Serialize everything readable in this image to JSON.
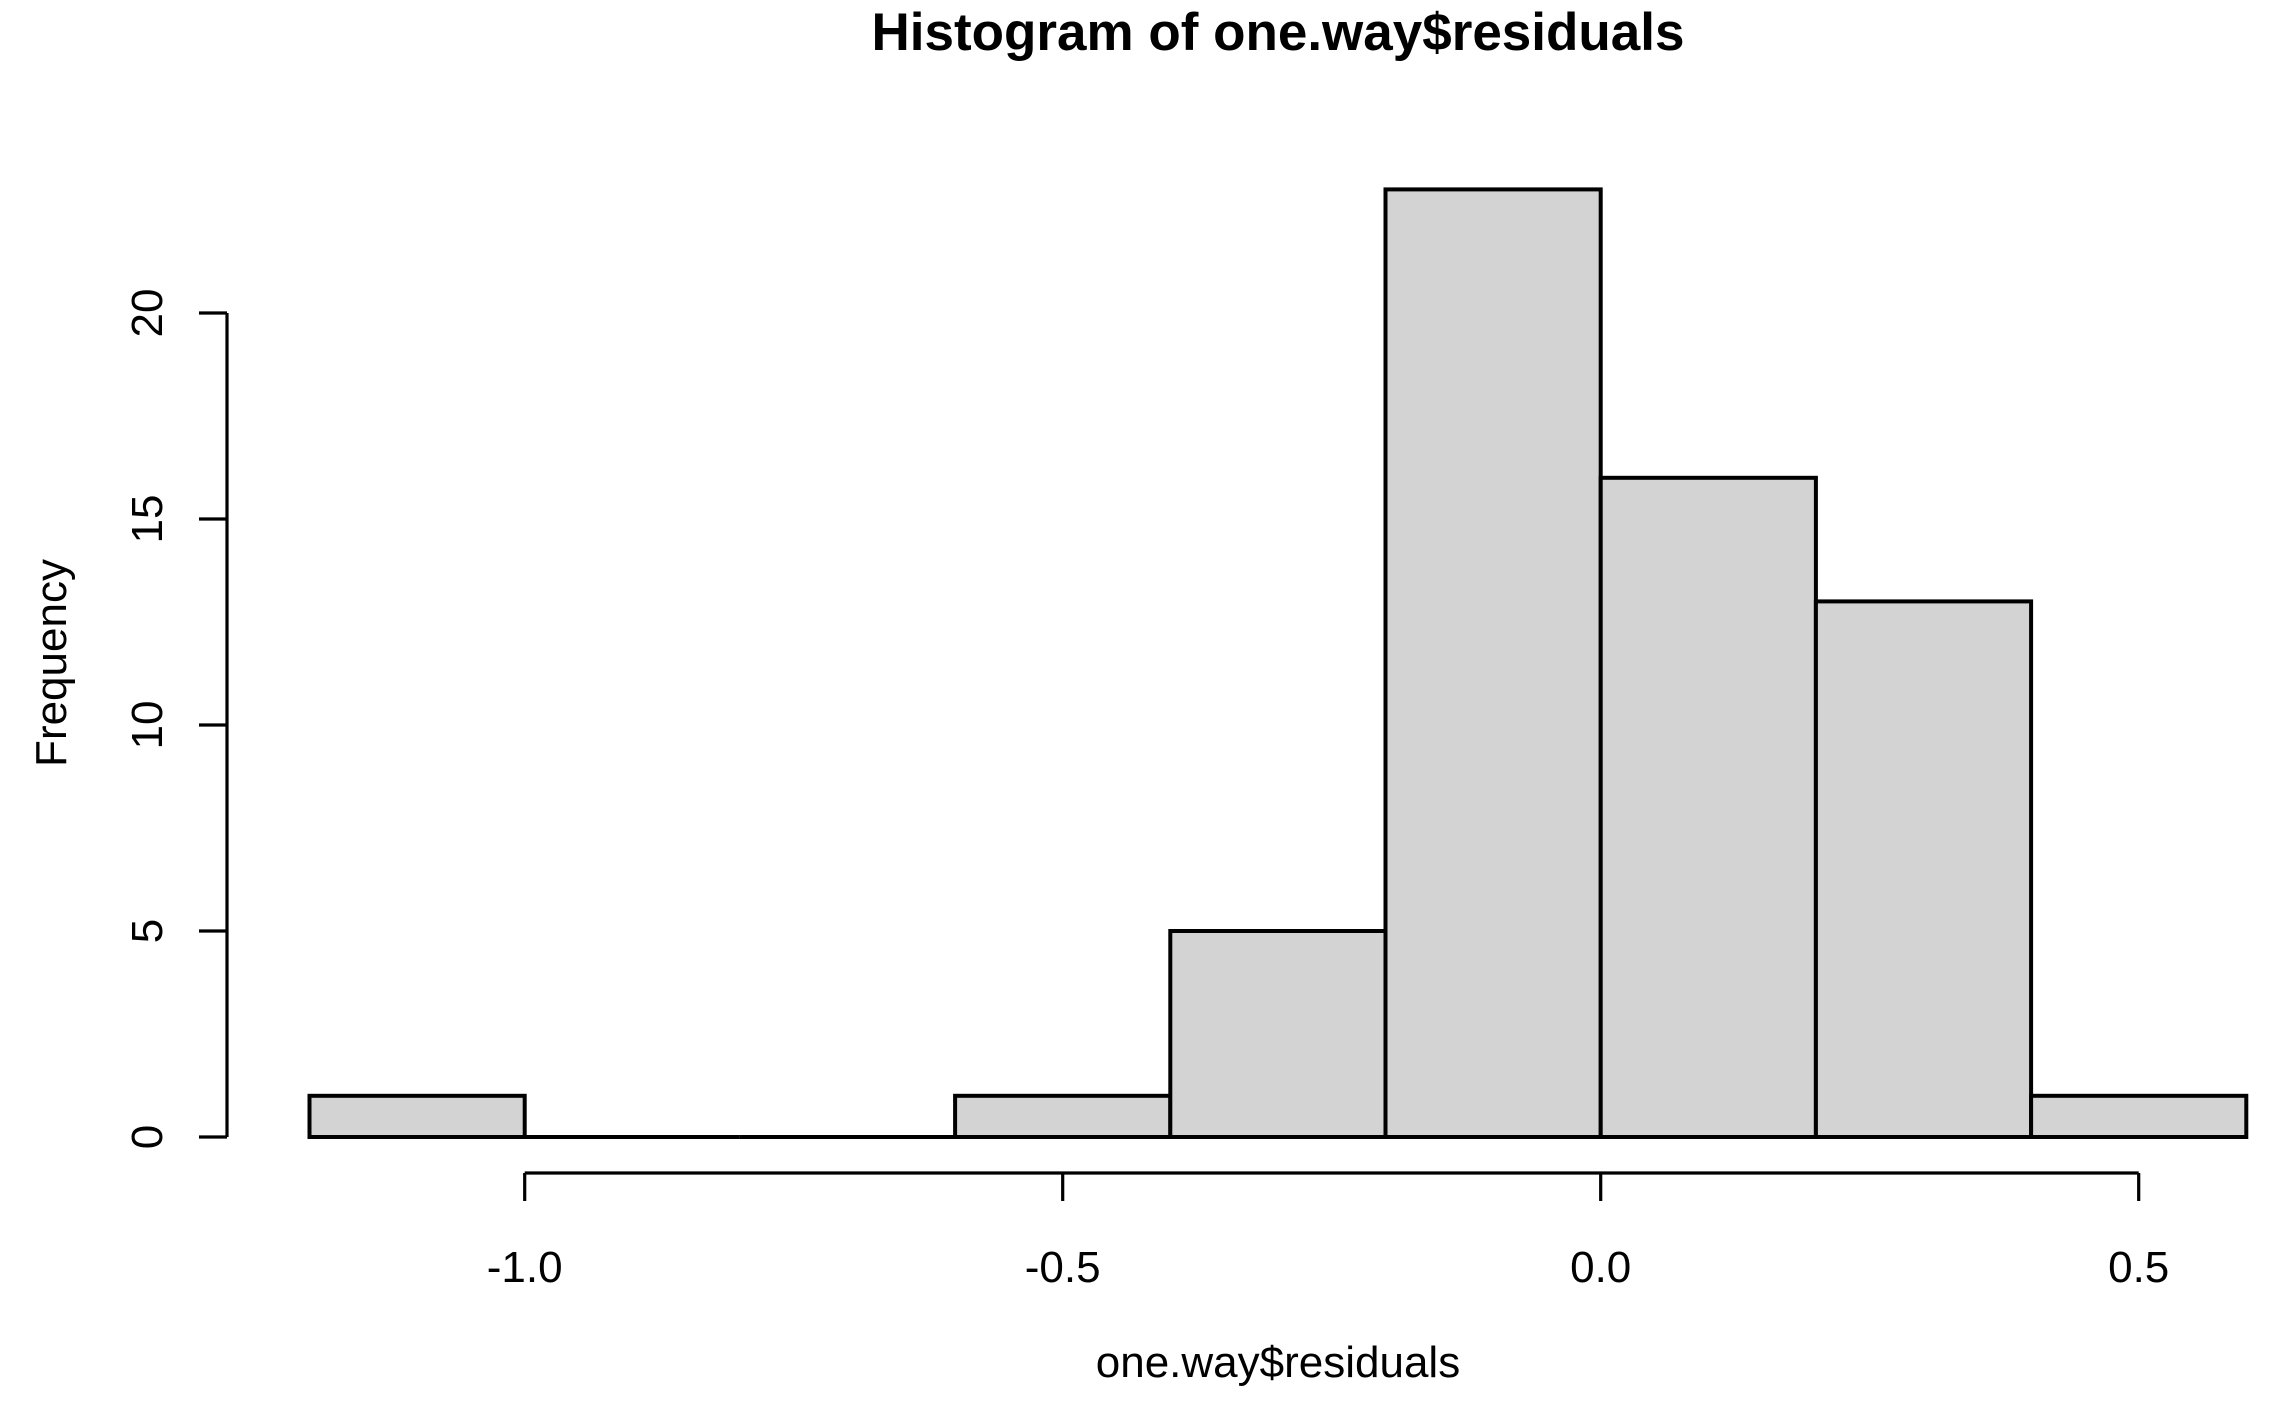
{
  "chart_data": {
    "type": "bar",
    "subtype": "histogram",
    "title": "Histogram of one.way$residuals",
    "xlabel": "one.way$residuals",
    "ylabel": "Frequency",
    "bins": [
      {
        "start": -1.2,
        "end": -1.0,
        "count": 1
      },
      {
        "start": -1.0,
        "end": -0.8,
        "count": 0
      },
      {
        "start": -0.8,
        "end": -0.6,
        "count": 0
      },
      {
        "start": -0.6,
        "end": -0.4,
        "count": 1
      },
      {
        "start": -0.4,
        "end": -0.2,
        "count": 5
      },
      {
        "start": -0.2,
        "end": 0.0,
        "count": 23
      },
      {
        "start": 0.0,
        "end": 0.2,
        "count": 16
      },
      {
        "start": 0.2,
        "end": 0.4,
        "count": 13
      },
      {
        "start": 0.4,
        "end": 0.6,
        "count": 1
      }
    ],
    "x_ticks": [
      {
        "value": -1.0,
        "label": "-1.0"
      },
      {
        "value": -0.5,
        "label": "-0.5"
      },
      {
        "value": 0.0,
        "label": "0.0"
      },
      {
        "value": 0.5,
        "label": "0.5"
      }
    ],
    "y_ticks": [
      {
        "value": 0,
        "label": "0"
      },
      {
        "value": 5,
        "label": "5"
      },
      {
        "value": 10,
        "label": "10"
      },
      {
        "value": 15,
        "label": "15"
      },
      {
        "value": 20,
        "label": "20"
      }
    ],
    "xlim": [
      -1.2,
      0.6
    ],
    "ylim": [
      0,
      23
    ],
    "grid": false,
    "legend": "none",
    "bar_fill": "#d3d3d3",
    "bar_stroke": "#000000",
    "axis_color": "#000000",
    "text_color": "#000000",
    "background": "#ffffff"
  }
}
